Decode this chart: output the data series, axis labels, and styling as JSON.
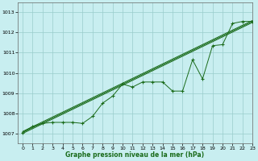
{
  "xlabel": "Graphe pression niveau de la mer (hPa)",
  "background_color": "#c8eef0",
  "grid_color": "#99cccc",
  "line_color": "#1a6b1a",
  "xlim": [
    -0.5,
    23
  ],
  "ylim": [
    1006.5,
    1013.5
  ],
  "yticks": [
    1007,
    1008,
    1009,
    1010,
    1011,
    1012,
    1013
  ],
  "xticks": [
    0,
    1,
    2,
    3,
    4,
    5,
    6,
    7,
    8,
    9,
    10,
    11,
    12,
    13,
    14,
    15,
    16,
    17,
    18,
    19,
    20,
    21,
    22,
    23
  ],
  "measured_x": [
    0,
    1,
    2,
    3,
    4,
    5,
    6,
    7,
    8,
    9,
    10,
    11,
    12,
    13,
    14,
    15,
    16,
    17,
    18,
    19,
    20,
    21,
    22,
    23
  ],
  "measured_y": [
    1007.05,
    1007.35,
    1007.5,
    1007.55,
    1007.55,
    1007.55,
    1007.5,
    1007.85,
    1008.5,
    1008.85,
    1009.45,
    1009.3,
    1009.55,
    1009.55,
    1009.55,
    1009.1,
    1009.1,
    1010.65,
    1009.7,
    1011.35,
    1011.4,
    1012.45,
    1012.55,
    1012.55
  ],
  "trend1_x": [
    0,
    23
  ],
  "trend1_y": [
    1007.05,
    1012.55
  ],
  "trend2_x": [
    0,
    23
  ],
  "trend2_y": [
    1007.1,
    1012.6
  ],
  "trend3_x": [
    0,
    23
  ],
  "trend3_y": [
    1007.0,
    1012.5
  ],
  "figwidth": 3.2,
  "figheight": 2.0,
  "dpi": 100
}
